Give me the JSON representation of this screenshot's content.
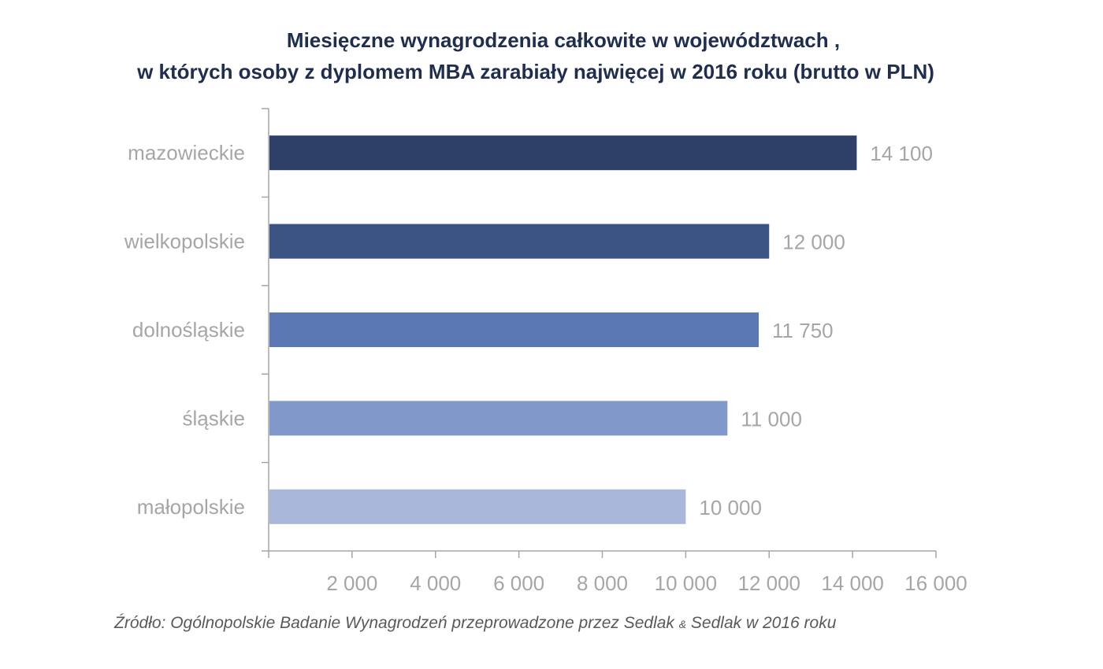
{
  "chart_data": {
    "type": "bar",
    "orientation": "horizontal",
    "title": "Miesięczne wynagrodzenia całkowite  w województwach ,",
    "subtitle": "w których osoby z dyplomem MBA zarabiały najwięcej w 2016 roku (brutto w PLN)",
    "categories": [
      "mazowieckie",
      "wielkopolskie",
      "dolnośląskie",
      "śląskie",
      "małopolskie"
    ],
    "values": [
      14100,
      12000,
      11750,
      11000,
      10000
    ],
    "value_labels": [
      "14 100",
      "12 000",
      "11 750",
      "11 000",
      "10 000"
    ],
    "bar_colors": [
      "#2e4068",
      "#3b5484",
      "#5b78b5",
      "#8198cb",
      "#a9b7da"
    ],
    "xlim": [
      0,
      16000
    ],
    "x_ticks": [
      2000,
      4000,
      6000,
      8000,
      10000,
      12000,
      14000,
      16000
    ],
    "x_tick_labels": [
      "2 000",
      "4 000",
      "6 000",
      "8 000",
      "10 000",
      "12 000",
      "14 000",
      "16 000"
    ],
    "grid": false,
    "legend": "none"
  },
  "source": {
    "prefix": "Źródło: Ogólnopolskie Badanie Wynagrodzeń przeprowadzone przez Sedlak ",
    "amp": "&",
    "suffix": " Sedlak w 2016 roku"
  },
  "colors": {
    "title": "#1f2d4f",
    "axis": "#a6a6a6",
    "label": "#a6a6a6",
    "source": "#595959"
  }
}
